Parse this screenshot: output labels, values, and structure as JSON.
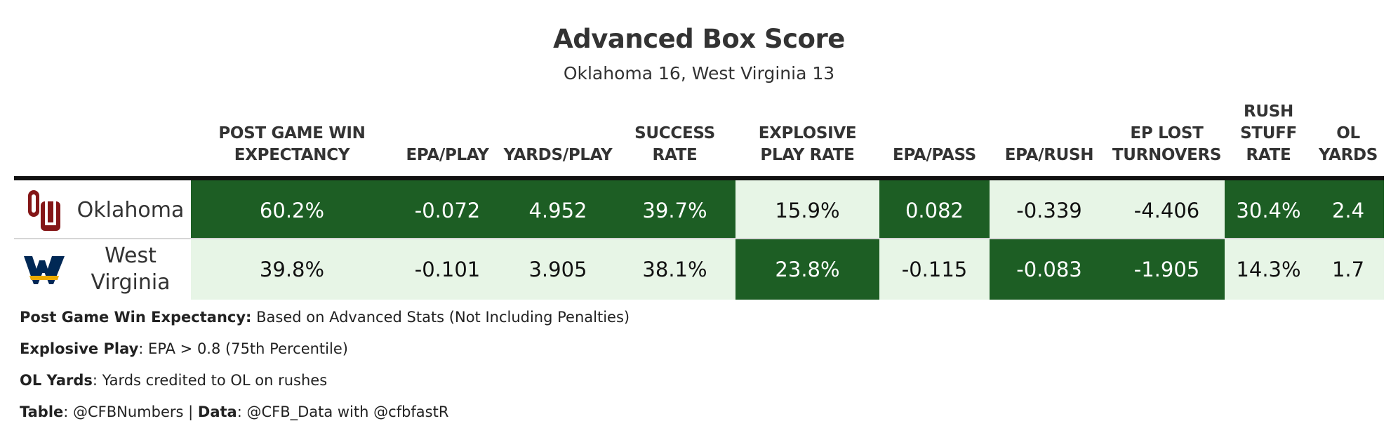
{
  "title": "Advanced Box Score",
  "subtitle": "Oklahoma 16, West Virginia 13",
  "colors": {
    "dark_green": "#1d5e24",
    "light_green": "#e7f5e6",
    "ou_crimson": "#841617",
    "wvu_blue": "#002855",
    "wvu_gold": "#eaaa00"
  },
  "chart_data": {
    "type": "table",
    "columns": [
      {
        "key": "wp",
        "lines": [
          "POST GAME WIN",
          "EXPECTANCY"
        ]
      },
      {
        "key": "epa_play",
        "lines": [
          "EPA/PLAY"
        ]
      },
      {
        "key": "ypp",
        "lines": [
          "YARDS/PLAY"
        ]
      },
      {
        "key": "sr",
        "lines": [
          "SUCCESS",
          "RATE"
        ]
      },
      {
        "key": "xpl",
        "lines": [
          "EXPLOSIVE",
          "PLAY RATE"
        ]
      },
      {
        "key": "epa_pass",
        "lines": [
          "EPA/PASS"
        ]
      },
      {
        "key": "epa_rush",
        "lines": [
          "EPA/RUSH"
        ]
      },
      {
        "key": "ep_to",
        "lines": [
          "EP LOST",
          "TURNOVERS"
        ]
      },
      {
        "key": "stuff",
        "lines": [
          "RUSH",
          "STUFF",
          "RATE"
        ]
      },
      {
        "key": "ol",
        "lines": [
          "OL",
          "YARDS"
        ]
      }
    ],
    "rows": [
      {
        "team": "Oklahoma",
        "team_lines": [
          "Oklahoma"
        ],
        "logo": "ou-logo",
        "values": [
          "60.2%",
          "-0.072",
          "4.952",
          "39.7%",
          "15.9%",
          "0.082",
          "-0.339",
          "-4.406",
          "30.4%",
          "2.4"
        ],
        "highlight": [
          "dark",
          "dark",
          "dark",
          "dark",
          "light",
          "dark",
          "light",
          "light",
          "dark",
          "dark"
        ]
      },
      {
        "team": "West Virginia",
        "team_lines": [
          "West",
          "Virginia"
        ],
        "logo": "wvu-logo",
        "values": [
          "39.8%",
          "-0.101",
          "3.905",
          "38.1%",
          "23.8%",
          "-0.115",
          "-0.083",
          "-1.905",
          "14.3%",
          "1.7"
        ],
        "highlight": [
          "light",
          "light",
          "light",
          "light",
          "dark",
          "light",
          "dark",
          "dark",
          "light",
          "light"
        ]
      }
    ]
  },
  "notes": [
    {
      "bold": "Post Game Win Expectancy:",
      "text": " Based on Advanced Stats (Not Including Penalties)"
    },
    {
      "bold": "Explosive Play",
      "text": ": EPA > 0.8 (75th Percentile)"
    },
    {
      "bold": "OL Yards",
      "text": ": Yards credited to OL on rushes"
    },
    {
      "bold": "Table",
      "text": ": @CFBNumbers | ",
      "bold2": "Data",
      "text2": ": @CFB_Data with @cfbfastR"
    }
  ]
}
